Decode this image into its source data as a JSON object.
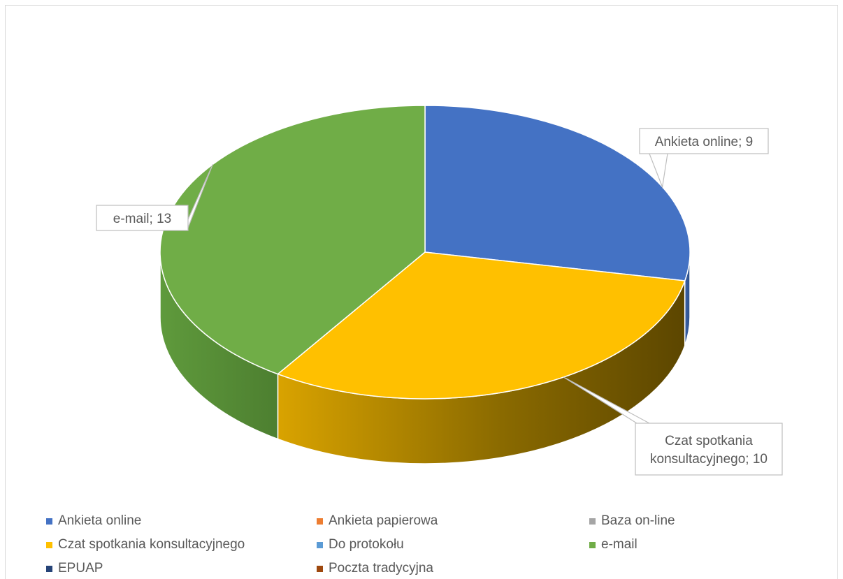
{
  "chart_data": {
    "type": "pie",
    "three_d": true,
    "categories": [
      "Ankieta online",
      "Ankieta papierowa",
      "Baza on-line",
      "Czat spotkania konsultacyjnego",
      "Do protokołu",
      "e-mail",
      "EPUAP",
      "Poczta tradycyjna"
    ],
    "values": [
      9,
      0,
      0,
      10,
      0,
      13,
      0,
      0
    ],
    "colors": [
      "#4472c4",
      "#ed7d31",
      "#a5a5a5",
      "#ffc000",
      "#5b9bd5",
      "#70ad47",
      "#264478",
      "#9e480e"
    ],
    "data_labels": [
      {
        "category": "Ankieta online",
        "lines": [
          "Ankieta online; 9"
        ]
      },
      {
        "category": "Czat spotkania konsultacyjnego",
        "lines": [
          "Czat spotkania",
          "konsultacyjnego; 10"
        ]
      },
      {
        "category": "e-mail",
        "lines": [
          "e-mail; 13"
        ]
      }
    ],
    "legend_position": "bottom"
  }
}
